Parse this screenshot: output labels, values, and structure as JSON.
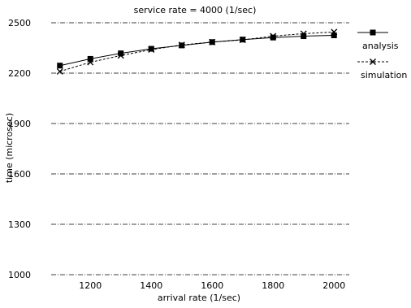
{
  "chart_data": {
    "type": "line",
    "title": "service rate = 4000 (1/sec)",
    "xlabel": "arrival rate (1/sec)",
    "ylabel": "time (microsec)",
    "xlim": [
      1050,
      2050
    ],
    "ylim": [
      1000,
      2500
    ],
    "x_ticks": [
      1200,
      1400,
      1600,
      1800,
      2000
    ],
    "y_ticks": [
      1000,
      1300,
      1600,
      1900,
      2200,
      2500
    ],
    "grid": true,
    "legend_position": "top-right, outside plot",
    "series": [
      {
        "name": "analysis",
        "marker": "square",
        "x": [
          1100,
          1200,
          1300,
          1400,
          1500,
          1600,
          1700,
          1800,
          1900,
          2000
        ],
        "y": [
          2245,
          2285,
          2318,
          2345,
          2365,
          2385,
          2400,
          2412,
          2420,
          2425
        ]
      },
      {
        "name": "simulation",
        "marker": "cross",
        "x": [
          1100,
          1200,
          1300,
          1400,
          1500,
          1600,
          1700,
          1800,
          1900,
          2000
        ],
        "y": [
          2210,
          2265,
          2305,
          2340,
          2368,
          2385,
          2398,
          2420,
          2435,
          2445
        ]
      }
    ]
  }
}
